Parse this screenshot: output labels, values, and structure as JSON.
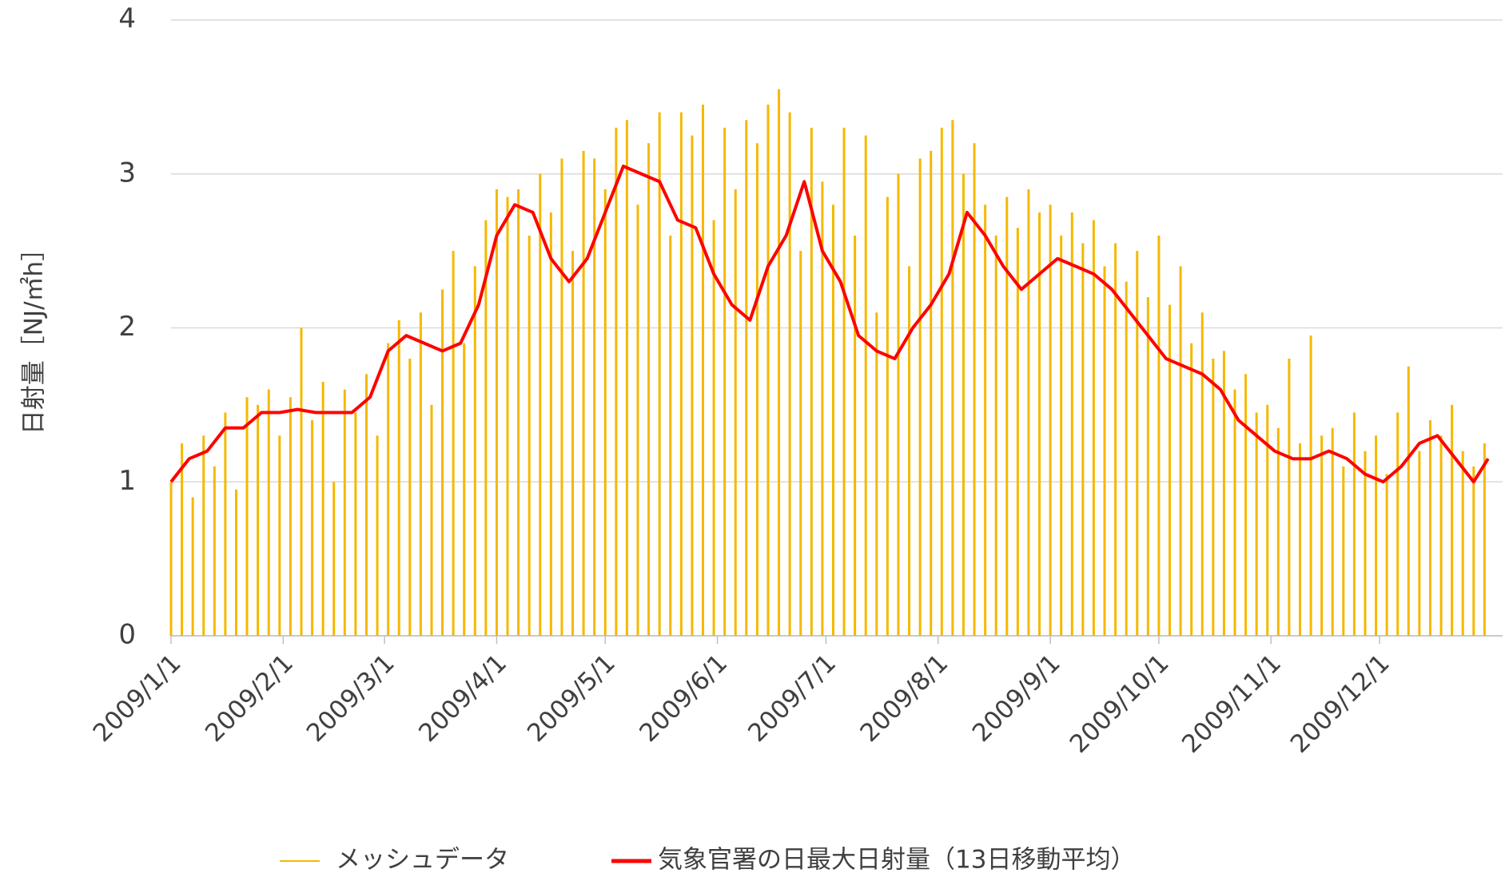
{
  "chart_data": {
    "type": "line",
    "y_label": "日射量［NJ/㎡h］",
    "xlim": [
      0,
      368
    ],
    "ylim": [
      0,
      4
    ],
    "yticks": [
      0,
      1,
      2,
      3,
      4
    ],
    "grid": true,
    "xticks": [
      {
        "value": 0,
        "label": "2009/1/1"
      },
      {
        "value": 31,
        "label": "2009/2/1"
      },
      {
        "value": 59,
        "label": "2009/3/1"
      },
      {
        "value": 90,
        "label": "2009/4/1"
      },
      {
        "value": 120,
        "label": "2009/5/1"
      },
      {
        "value": 151,
        "label": "2009/6/1"
      },
      {
        "value": 181,
        "label": "2009/7/1"
      },
      {
        "value": 212,
        "label": "2009/8/1"
      },
      {
        "value": 243,
        "label": "2009/9/1"
      },
      {
        "value": 273,
        "label": "2009/10/1"
      },
      {
        "value": 304,
        "label": "2009/11/1"
      },
      {
        "value": 334,
        "label": "2009/12/1"
      }
    ],
    "legend": "bottom",
    "series": [
      {
        "name": "メッシュデータ",
        "type": "bar",
        "color": "#f5b800",
        "x": [
          0,
          3,
          6,
          9,
          12,
          15,
          18,
          21,
          24,
          27,
          30,
          33,
          36,
          39,
          42,
          45,
          48,
          51,
          54,
          57,
          60,
          63,
          66,
          69,
          72,
          75,
          78,
          81,
          84,
          87,
          90,
          93,
          96,
          99,
          102,
          105,
          108,
          111,
          114,
          117,
          120,
          123,
          126,
          129,
          132,
          135,
          138,
          141,
          144,
          147,
          150,
          153,
          156,
          159,
          162,
          165,
          168,
          171,
          174,
          177,
          180,
          183,
          186,
          189,
          192,
          195,
          198,
          201,
          204,
          207,
          210,
          213,
          216,
          219,
          222,
          225,
          228,
          231,
          234,
          237,
          240,
          243,
          246,
          249,
          252,
          255,
          258,
          261,
          264,
          267,
          270,
          273,
          276,
          279,
          282,
          285,
          288,
          291,
          294,
          297,
          300,
          303,
          306,
          309,
          312,
          315,
          318,
          321,
          324,
          327,
          330,
          333,
          336,
          339,
          342,
          345,
          348,
          351,
          354,
          357,
          360,
          363
        ],
        "values": [
          1.0,
          1.25,
          0.9,
          1.3,
          1.1,
          1.45,
          0.95,
          1.55,
          1.5,
          1.6,
          1.3,
          1.55,
          2.0,
          1.4,
          1.65,
          1.0,
          1.6,
          1.45,
          1.7,
          1.3,
          1.9,
          2.05,
          1.8,
          2.1,
          1.5,
          2.25,
          2.5,
          1.9,
          2.4,
          2.7,
          2.9,
          2.85,
          2.9,
          2.6,
          3.0,
          2.75,
          3.1,
          2.5,
          3.15,
          3.1,
          2.9,
          3.3,
          3.35,
          2.8,
          3.2,
          3.4,
          2.6,
          3.4,
          3.25,
          3.45,
          2.7,
          3.3,
          2.9,
          3.35,
          3.2,
          3.45,
          3.55,
          3.4,
          2.5,
          3.3,
          2.95,
          2.8,
          3.3,
          2.6,
          3.25,
          2.1,
          2.85,
          3.0,
          2.4,
          3.1,
          3.15,
          3.3,
          3.35,
          3.0,
          3.2,
          2.8,
          2.6,
          2.85,
          2.65,
          2.9,
          2.75,
          2.8,
          2.6,
          2.75,
          2.55,
          2.7,
          2.4,
          2.55,
          2.3,
          2.5,
          2.2,
          2.6,
          2.15,
          2.4,
          1.9,
          2.1,
          1.8,
          1.85,
          1.6,
          1.7,
          1.45,
          1.5,
          1.35,
          1.8,
          1.25,
          1.95,
          1.3,
          1.35,
          1.1,
          1.45,
          1.2,
          1.3,
          1.05,
          1.45,
          1.75,
          1.2,
          1.4,
          1.3,
          1.5,
          1.2,
          1.1,
          1.25
        ]
      },
      {
        "name": "気象官署の日最大日射量（13日移動平均）",
        "type": "line",
        "color": "#ff0000",
        "x": [
          0,
          5,
          10,
          15,
          20,
          25,
          30,
          35,
          40,
          45,
          50,
          55,
          60,
          65,
          70,
          75,
          80,
          85,
          90,
          95,
          100,
          105,
          110,
          115,
          120,
          125,
          130,
          135,
          140,
          145,
          150,
          155,
          160,
          165,
          170,
          175,
          180,
          185,
          190,
          195,
          200,
          205,
          210,
          215,
          220,
          225,
          230,
          235,
          240,
          245,
          250,
          255,
          260,
          265,
          270,
          275,
          280,
          285,
          290,
          295,
          300,
          305,
          310,
          315,
          320,
          325,
          330,
          335,
          340,
          345,
          350,
          355,
          360,
          364
        ],
        "values": [
          1.0,
          1.15,
          1.2,
          1.35,
          1.35,
          1.45,
          1.45,
          1.47,
          1.45,
          1.45,
          1.45,
          1.55,
          1.85,
          1.95,
          1.9,
          1.85,
          1.9,
          2.15,
          2.6,
          2.8,
          2.75,
          2.45,
          2.3,
          2.45,
          2.75,
          3.05,
          3.0,
          2.95,
          2.7,
          2.65,
          2.35,
          2.15,
          2.05,
          2.4,
          2.6,
          2.95,
          2.5,
          2.3,
          1.95,
          1.85,
          1.8,
          2.0,
          2.15,
          2.35,
          2.75,
          2.6,
          2.4,
          2.25,
          2.35,
          2.45,
          2.4,
          2.35,
          2.25,
          2.1,
          1.95,
          1.8,
          1.75,
          1.7,
          1.6,
          1.4,
          1.3,
          1.2,
          1.15,
          1.15,
          1.2,
          1.15,
          1.05,
          1.0,
          1.1,
          1.25,
          1.3,
          1.15,
          1.0,
          1.15
        ]
      }
    ]
  }
}
